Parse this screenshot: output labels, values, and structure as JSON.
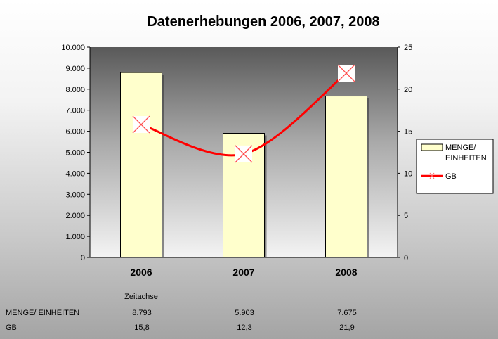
{
  "chart_data": {
    "type": "bar",
    "title": "Datenerhebungen 2006, 2007, 2008",
    "categories": [
      "2006",
      "2007",
      "2008"
    ],
    "xlabel": "Zeitachse",
    "series": [
      {
        "name": "MENGE/ EINHEITEN",
        "type": "bar",
        "axis": "left",
        "values": [
          8793,
          5903,
          7675
        ],
        "color": "#ffffcc"
      },
      {
        "name": "GB",
        "type": "line",
        "axis": "right",
        "values": [
          15.8,
          12.3,
          21.9
        ],
        "color": "#ff0000"
      }
    ],
    "ylim_left": [
      0,
      10000
    ],
    "yticks_left": [
      "0",
      "1.000",
      "2.000",
      "3.000",
      "4.000",
      "5.000",
      "6.000",
      "7.000",
      "8.000",
      "9.000",
      "10.000"
    ],
    "ylim_right": [
      0,
      25
    ],
    "yticks_right": [
      "0",
      "5",
      "10",
      "15",
      "20",
      "25"
    ],
    "legend": {
      "position": "right",
      "entries": [
        "MENGE/ EINHEITEN",
        "GB"
      ]
    },
    "data_table": {
      "rows": [
        {
          "label": "MENGE/ EINHEITEN",
          "values": [
            "8.793",
            "5.903",
            "7.675"
          ]
        },
        {
          "label": "GB",
          "values": [
            "15,8",
            "12,3",
            "21,9"
          ]
        }
      ]
    }
  }
}
